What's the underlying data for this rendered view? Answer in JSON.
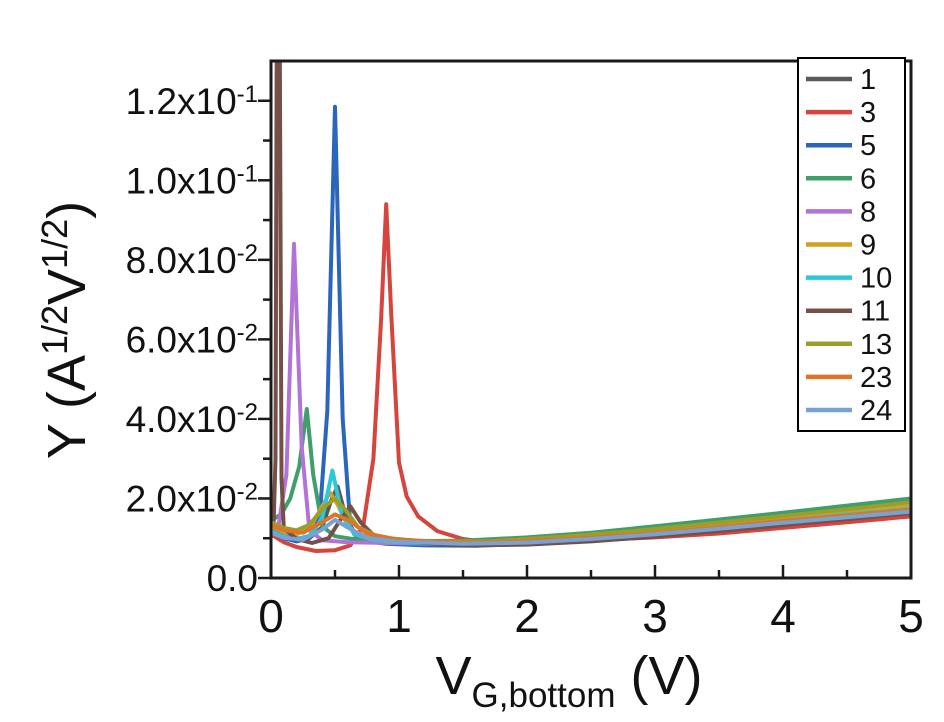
{
  "figure": {
    "background": "#ffffff"
  },
  "chart_data": {
    "type": "line",
    "title": "",
    "xlabel": {
      "segments": [
        {
          "t": "V"
        },
        {
          "sub": "G,bottom"
        },
        {
          "t": " (V)"
        }
      ]
    },
    "ylabel": {
      "segments": [
        {
          "t": "Y (A"
        },
        {
          "sup": "1/2"
        },
        {
          "t": "V"
        },
        {
          "sup": "1/2"
        },
        {
          "t": ")"
        }
      ]
    },
    "xlim": [
      0,
      5
    ],
    "ylim": [
      0,
      0.13
    ],
    "grid": false,
    "axis_color": "#1a1a1a",
    "legend_position": "upper-right",
    "x_ticks": [
      {
        "v": 0,
        "label": "0"
      },
      {
        "v": 1,
        "label": "1"
      },
      {
        "v": 2,
        "label": "2"
      },
      {
        "v": 3,
        "label": "3"
      },
      {
        "v": 4,
        "label": "4"
      },
      {
        "v": 5,
        "label": "5"
      }
    ],
    "x_minor_ticks": [
      0.5,
      1.5,
      2.5,
      3.5,
      4.5
    ],
    "y_ticks": [
      {
        "v": 0.12,
        "mantissa": "1.2x10",
        "exp": "-1"
      },
      {
        "v": 0.1,
        "mantissa": "1.0x10",
        "exp": "-1"
      },
      {
        "v": 0.08,
        "mantissa": "8.0x10",
        "exp": "-2"
      },
      {
        "v": 0.06,
        "mantissa": "6.0x10",
        "exp": "-2"
      },
      {
        "v": 0.04,
        "mantissa": "4.0x10",
        "exp": "-2"
      },
      {
        "v": 0.02,
        "mantissa": "2.0x10",
        "exp": "-2"
      },
      {
        "v": 0.0,
        "mantissa": "0.0",
        "exp": ""
      }
    ],
    "y_minor_ticks": [
      0.01,
      0.03,
      0.05,
      0.07,
      0.09,
      0.11
    ],
    "series": [
      {
        "name": "1",
        "color": "#595959",
        "points": [
          [
            0,
            0.012
          ],
          [
            0.1,
            0.0105
          ],
          [
            0.2,
            0.01
          ],
          [
            0.3,
            0.01
          ],
          [
            0.4,
            0.0128
          ],
          [
            0.47,
            0.0195
          ],
          [
            0.52,
            0.023
          ],
          [
            0.58,
            0.016
          ],
          [
            0.65,
            0.011
          ],
          [
            0.8,
            0.0095
          ],
          [
            1.0,
            0.009
          ],
          [
            1.5,
            0.0085
          ],
          [
            2.0,
            0.0088
          ],
          [
            2.5,
            0.0096
          ],
          [
            3.0,
            0.011
          ],
          [
            3.5,
            0.0125
          ],
          [
            4.0,
            0.014
          ],
          [
            4.5,
            0.0155
          ],
          [
            5.0,
            0.017
          ]
        ]
      },
      {
        "name": "3",
        "color": "#d5453e",
        "points": [
          [
            0,
            0.011
          ],
          [
            0.1,
            0.009
          ],
          [
            0.2,
            0.0078
          ],
          [
            0.35,
            0.0068
          ],
          [
            0.5,
            0.007
          ],
          [
            0.62,
            0.0082
          ],
          [
            0.72,
            0.013
          ],
          [
            0.8,
            0.03
          ],
          [
            0.86,
            0.065
          ],
          [
            0.9,
            0.094
          ],
          [
            0.94,
            0.066
          ],
          [
            1.0,
            0.029
          ],
          [
            1.06,
            0.0205
          ],
          [
            1.15,
            0.0155
          ],
          [
            1.3,
            0.0118
          ],
          [
            1.5,
            0.0098
          ],
          [
            1.8,
            0.0086
          ],
          [
            2.2,
            0.009
          ],
          [
            2.6,
            0.0096
          ],
          [
            3.0,
            0.0102
          ],
          [
            3.5,
            0.0112
          ],
          [
            4.0,
            0.0126
          ],
          [
            4.5,
            0.014
          ],
          [
            5.0,
            0.0155
          ]
        ]
      },
      {
        "name": "5",
        "color": "#2a66bb",
        "points": [
          [
            0,
            0.0115
          ],
          [
            0.1,
            0.01
          ],
          [
            0.2,
            0.0092
          ],
          [
            0.3,
            0.01
          ],
          [
            0.38,
            0.015
          ],
          [
            0.44,
            0.042
          ],
          [
            0.5,
            0.1185
          ],
          [
            0.56,
            0.04
          ],
          [
            0.62,
            0.013
          ],
          [
            0.7,
            0.0095
          ],
          [
            0.9,
            0.0086
          ],
          [
            1.2,
            0.0082
          ],
          [
            1.6,
            0.0081
          ],
          [
            2.0,
            0.0086
          ],
          [
            2.5,
            0.0096
          ],
          [
            3.0,
            0.0108
          ],
          [
            3.5,
            0.0125
          ],
          [
            4.0,
            0.0142
          ],
          [
            4.5,
            0.016
          ],
          [
            5.0,
            0.0175
          ]
        ]
      },
      {
        "name": "6",
        "color": "#3f9f6b",
        "points": [
          [
            0,
            0.0145
          ],
          [
            0.08,
            0.016
          ],
          [
            0.15,
            0.02
          ],
          [
            0.22,
            0.028
          ],
          [
            0.28,
            0.0425
          ],
          [
            0.33,
            0.026
          ],
          [
            0.4,
            0.013
          ],
          [
            0.5,
            0.0105
          ],
          [
            0.7,
            0.0095
          ],
          [
            1.0,
            0.0092
          ],
          [
            1.5,
            0.0094
          ],
          [
            2.0,
            0.0102
          ],
          [
            2.5,
            0.0114
          ],
          [
            3.0,
            0.013
          ],
          [
            3.5,
            0.0147
          ],
          [
            4.0,
            0.0164
          ],
          [
            4.5,
            0.0182
          ],
          [
            5.0,
            0.02
          ]
        ]
      },
      {
        "name": "8",
        "color": "#b273d6",
        "points": [
          [
            0,
            0.0125
          ],
          [
            0.06,
            0.0135
          ],
          [
            0.12,
            0.026
          ],
          [
            0.18,
            0.084
          ],
          [
            0.24,
            0.033
          ],
          [
            0.3,
            0.012
          ],
          [
            0.4,
            0.0095
          ],
          [
            0.6,
            0.009
          ],
          [
            0.9,
            0.0088
          ],
          [
            1.3,
            0.0086
          ],
          [
            1.8,
            0.0086
          ],
          [
            2.3,
            0.0094
          ],
          [
            2.8,
            0.0104
          ],
          [
            3.3,
            0.0117
          ],
          [
            3.8,
            0.0132
          ],
          [
            4.3,
            0.0148
          ],
          [
            4.7,
            0.016
          ],
          [
            5.0,
            0.017
          ]
        ]
      },
      {
        "name": "9",
        "color": "#cfa126",
        "points": [
          [
            0,
            0.013
          ],
          [
            0.1,
            0.0116
          ],
          [
            0.2,
            0.011
          ],
          [
            0.3,
            0.0124
          ],
          [
            0.4,
            0.018
          ],
          [
            0.46,
            0.0215
          ],
          [
            0.52,
            0.0185
          ],
          [
            0.6,
            0.013
          ],
          [
            0.7,
            0.0105
          ],
          [
            0.9,
            0.0092
          ],
          [
            1.3,
            0.0086
          ],
          [
            1.8,
            0.0089
          ],
          [
            2.3,
            0.0099
          ],
          [
            2.8,
            0.0112
          ],
          [
            3.3,
            0.0126
          ],
          [
            3.8,
            0.0142
          ],
          [
            4.4,
            0.016
          ],
          [
            5.0,
            0.018
          ]
        ]
      },
      {
        "name": "10",
        "color": "#2ec7da",
        "points": [
          [
            0,
            0.0118
          ],
          [
            0.1,
            0.0104
          ],
          [
            0.2,
            0.0098
          ],
          [
            0.3,
            0.0106
          ],
          [
            0.4,
            0.015
          ],
          [
            0.48,
            0.027
          ],
          [
            0.55,
            0.0165
          ],
          [
            0.65,
            0.011
          ],
          [
            0.8,
            0.0096
          ],
          [
            1.1,
            0.0088
          ],
          [
            1.5,
            0.0086
          ],
          [
            2.0,
            0.0091
          ],
          [
            2.5,
            0.01
          ],
          [
            3.0,
            0.0112
          ],
          [
            3.5,
            0.0128
          ],
          [
            4.0,
            0.0144
          ],
          [
            4.5,
            0.016
          ],
          [
            5.0,
            0.0174
          ]
        ]
      },
      {
        "name": "11",
        "color": "#755049",
        "points": [
          [
            0.02,
            0.0135
          ],
          [
            0.035,
            0.03
          ],
          [
            0.045,
            0.14
          ],
          [
            0.068,
            0.14
          ],
          [
            0.082,
            0.025
          ],
          [
            0.1,
            0.0125
          ],
          [
            0.2,
            0.0098
          ],
          [
            0.32,
            0.0088
          ],
          [
            0.45,
            0.01
          ],
          [
            0.55,
            0.015
          ],
          [
            0.62,
            0.018
          ],
          [
            0.7,
            0.014
          ],
          [
            0.8,
            0.0108
          ],
          [
            1.0,
            0.0092
          ],
          [
            1.5,
            0.0082
          ],
          [
            2.0,
            0.0084
          ],
          [
            2.5,
            0.0092
          ],
          [
            3.0,
            0.0104
          ],
          [
            3.5,
            0.0118
          ],
          [
            4.0,
            0.0133
          ],
          [
            4.5,
            0.0148
          ],
          [
            5.0,
            0.0163
          ]
        ]
      },
      {
        "name": "13",
        "color": "#9b9f2a",
        "points": [
          [
            0,
            0.014
          ],
          [
            0.1,
            0.0126
          ],
          [
            0.2,
            0.012
          ],
          [
            0.3,
            0.0134
          ],
          [
            0.42,
            0.018
          ],
          [
            0.5,
            0.02
          ],
          [
            0.58,
            0.0172
          ],
          [
            0.68,
            0.0128
          ],
          [
            0.85,
            0.0102
          ],
          [
            1.2,
            0.0092
          ],
          [
            1.7,
            0.0092
          ],
          [
            2.2,
            0.0102
          ],
          [
            2.8,
            0.0117
          ],
          [
            3.4,
            0.0136
          ],
          [
            4.0,
            0.0156
          ],
          [
            4.5,
            0.0173
          ],
          [
            5.0,
            0.019
          ]
        ]
      },
      {
        "name": "23",
        "color": "#de7426",
        "points": [
          [
            0,
            0.0132
          ],
          [
            0.1,
            0.012
          ],
          [
            0.25,
            0.0114
          ],
          [
            0.4,
            0.014
          ],
          [
            0.5,
            0.016
          ],
          [
            0.6,
            0.0146
          ],
          [
            0.75,
            0.0112
          ],
          [
            1.0,
            0.0096
          ],
          [
            1.5,
            0.0089
          ],
          [
            2.0,
            0.0093
          ],
          [
            2.5,
            0.0101
          ],
          [
            3.0,
            0.0113
          ],
          [
            3.5,
            0.0128
          ],
          [
            4.0,
            0.0144
          ],
          [
            4.5,
            0.0158
          ],
          [
            5.0,
            0.0172
          ]
        ]
      },
      {
        "name": "24",
        "color": "#77a2d3",
        "points": [
          [
            0,
            0.0114
          ],
          [
            0.1,
            0.0101
          ],
          [
            0.25,
            0.0096
          ],
          [
            0.4,
            0.0122
          ],
          [
            0.5,
            0.0146
          ],
          [
            0.6,
            0.0127
          ],
          [
            0.75,
            0.0101
          ],
          [
            1.0,
            0.0091
          ],
          [
            1.5,
            0.0086
          ],
          [
            2.0,
            0.0089
          ],
          [
            2.5,
            0.0098
          ],
          [
            3.0,
            0.011
          ],
          [
            3.5,
            0.0124
          ],
          [
            4.0,
            0.0139
          ],
          [
            4.5,
            0.0153
          ],
          [
            5.0,
            0.0167
          ]
        ]
      }
    ]
  }
}
